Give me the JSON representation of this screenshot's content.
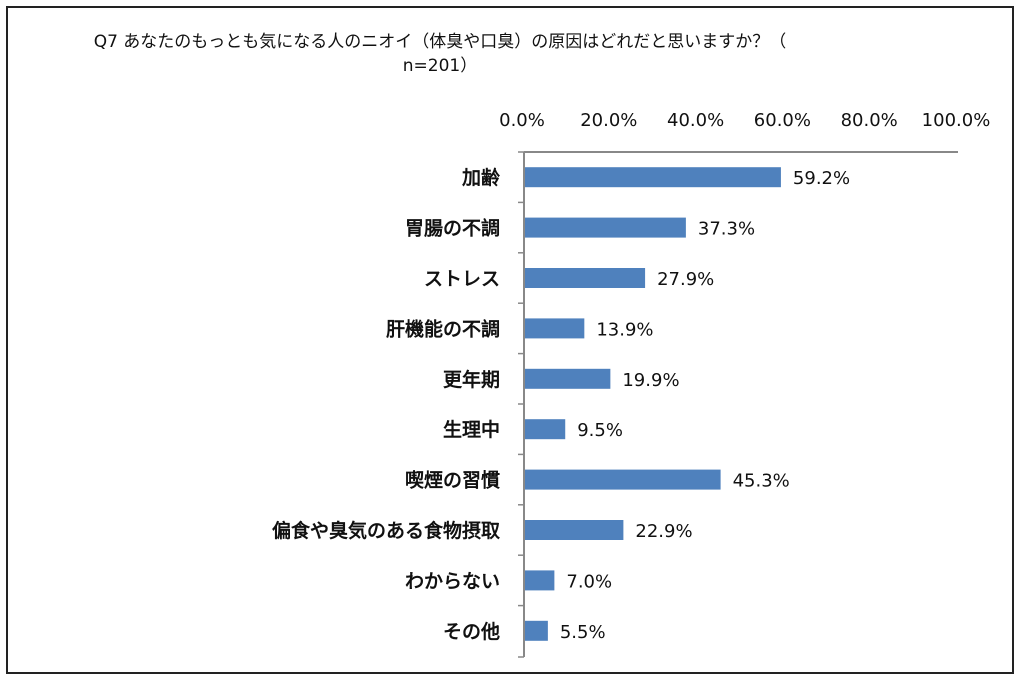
{
  "chart_data": {
    "type": "bar",
    "orientation": "horizontal",
    "title_line1": "Q7 あなたのもっとも気になる人のニオイ（体臭や口臭）の原因はどれだと思いますか？（",
    "title_line2": "n=201）",
    "categories": [
      "加齢",
      "胃腸の不調",
      "ストレス",
      "肝機能の不調",
      "更年期",
      "生理中",
      "喫煙の習慣",
      "偏食や臭気のある食物摂取",
      "わからない",
      "その他"
    ],
    "values": [
      59.2,
      37.3,
      27.9,
      13.9,
      19.9,
      9.5,
      45.3,
      22.9,
      7.0,
      5.5
    ],
    "value_labels": [
      "59.2%",
      "37.3%",
      "27.9%",
      "13.9%",
      "19.9%",
      "9.5%",
      "45.3%",
      "22.9%",
      "7.0%",
      "5.5%"
    ],
    "xlim": [
      0,
      100
    ],
    "x_ticks": [
      "0.0%",
      "20.0%",
      "40.0%",
      "60.0%",
      "80.0%",
      "100.0%"
    ],
    "x_axis_position": "top",
    "grid": false,
    "legend": "none",
    "bar_color": "#4f81bd"
  }
}
